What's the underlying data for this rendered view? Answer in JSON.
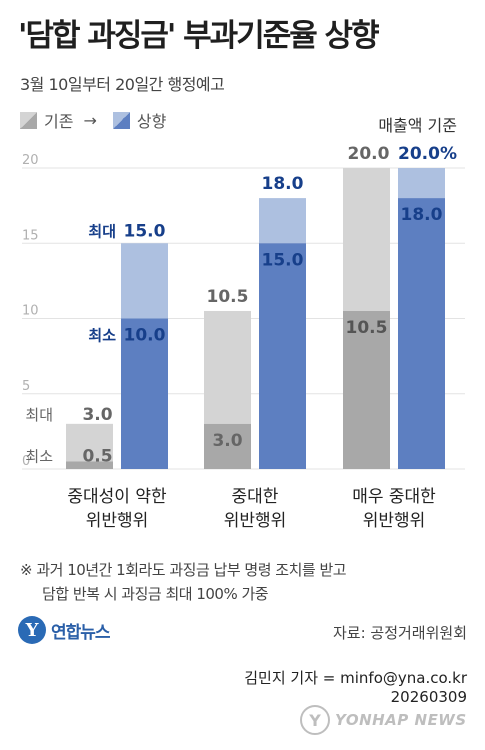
{
  "header": {
    "title": "'담합 과징금' 부과기준율 상향",
    "subtitle": "3월 10일부터 20일간 행정예고"
  },
  "legend": {
    "existing": "기존",
    "arrow": "→",
    "raised": "상향"
  },
  "note_top_right": "매출액 기준",
  "chart_data": {
    "type": "bar",
    "title": "'담합 과징금' 부과기준율 상향",
    "ylim": [
      0,
      20
    ],
    "yticks": [
      "0",
      "5",
      "10",
      "15",
      "20"
    ],
    "grid": true,
    "categories": [
      [
        "중대성이 약한",
        "위반행위"
      ],
      [
        "중대한",
        "위반행위"
      ],
      [
        "매우 중대한",
        "위반행위"
      ]
    ],
    "series": [
      {
        "name": "기존",
        "min": [
          0.5,
          3.0,
          10.5
        ],
        "max": [
          3.0,
          10.5,
          20.0
        ]
      },
      {
        "name": "상향",
        "min": [
          10.0,
          15.0,
          18.0
        ],
        "max": [
          15.0,
          18.0,
          20.0
        ]
      }
    ],
    "data_labels": {
      "existing_max": [
        "3.0",
        "10.5",
        "20.0"
      ],
      "existing_min": [
        "0.5",
        "3.0",
        "10.5"
      ],
      "raised_max": [
        "15.0",
        "18.0",
        "20.0%"
      ],
      "raised_min": [
        "10.0",
        "15.0",
        "18.0"
      ]
    },
    "label_prefixes": {
      "max": "최대",
      "min": "최소"
    },
    "colors": {
      "existing_light": "#d4d4d4",
      "existing_dark": "#a8a8a8",
      "raised_light": "#adc0e0",
      "raised_dark": "#5d7fc1",
      "raised_text": "#173f8a",
      "existing_text": "#666666"
    }
  },
  "footnote": {
    "line1": "※ 과거 10년간 1회라도 과징금 납부 명령 조치를 받고",
    "line2": "담합 반복 시 과징금 최대 100% 가중"
  },
  "logo": {
    "text": "연합뉴스",
    "icon": "yonhap-logo-icon"
  },
  "source": "자료: 공정거래위원회",
  "reporter": "김민지 기자 = minfo@yna.co.kr",
  "date": "20260309",
  "watermark": "YONHAP NEWS"
}
